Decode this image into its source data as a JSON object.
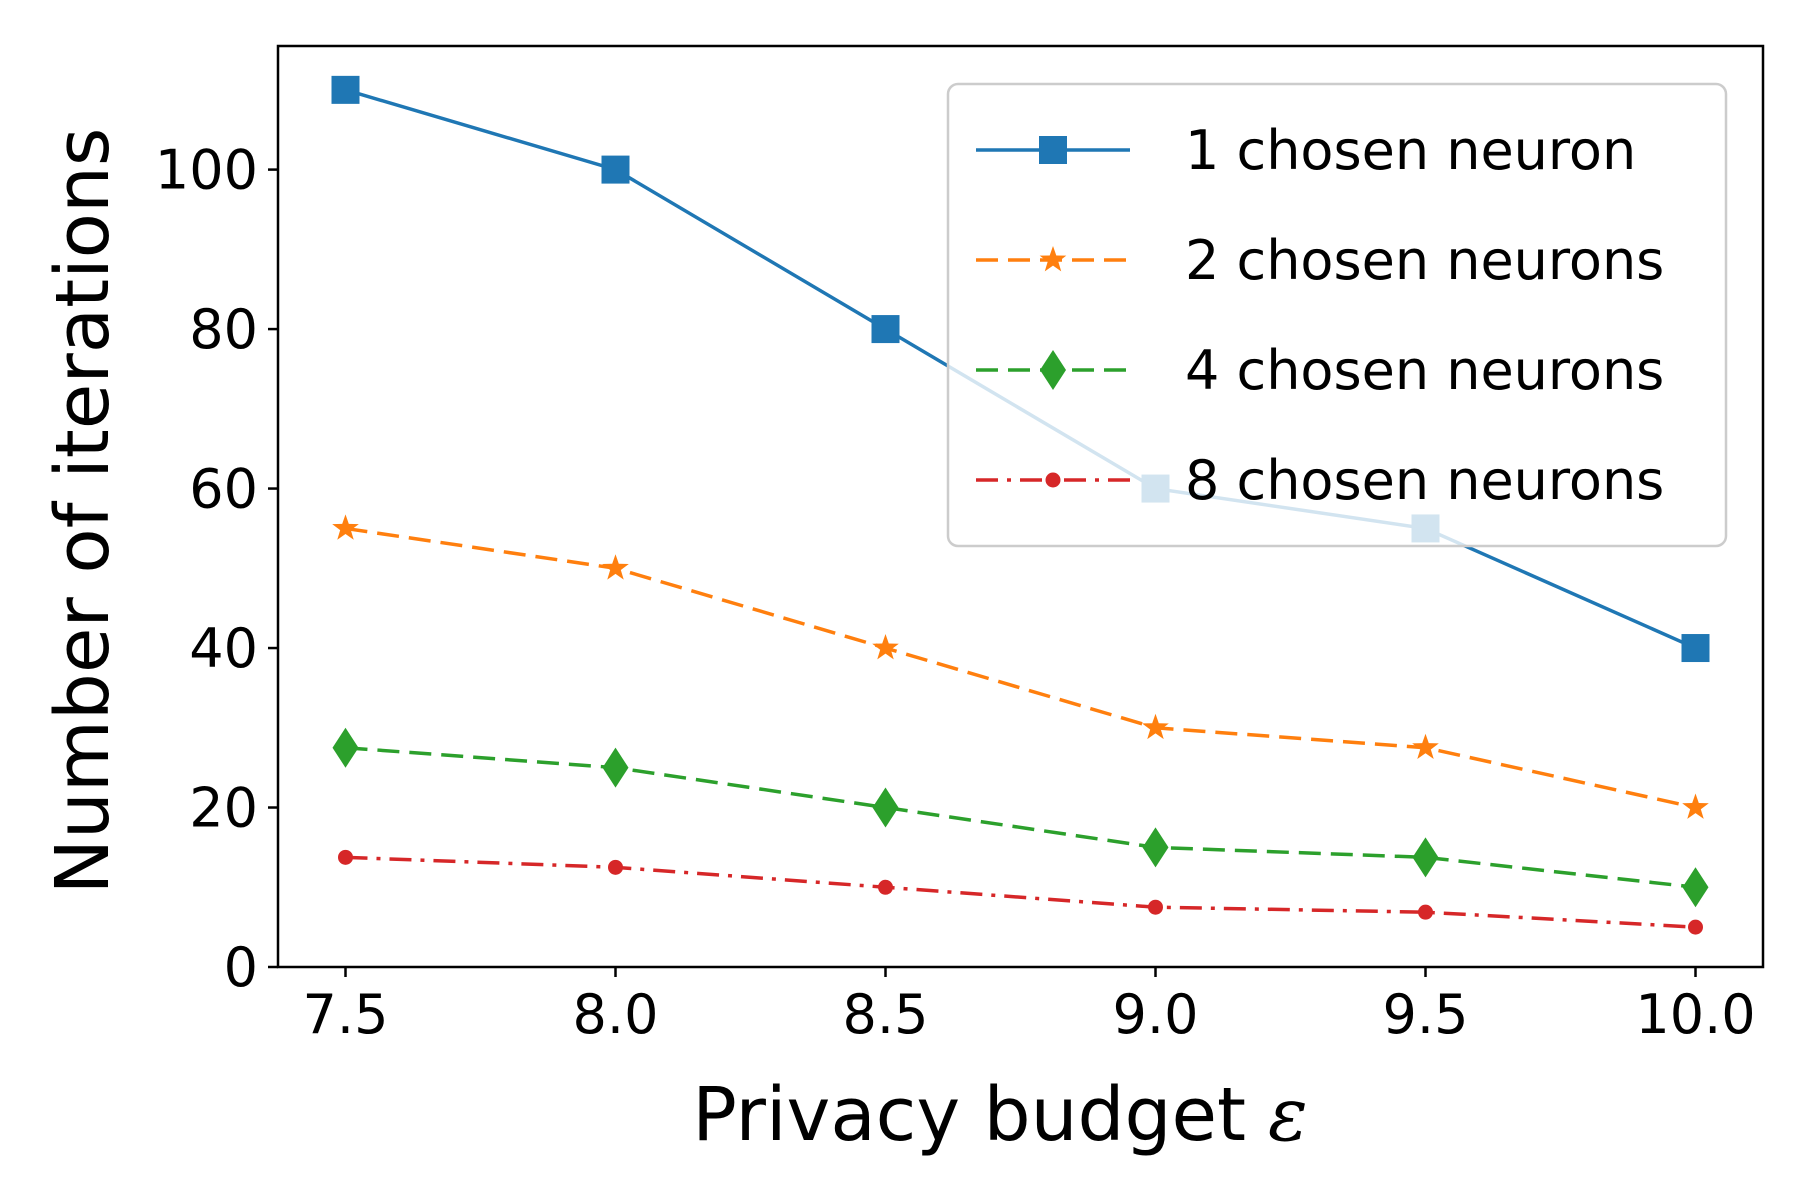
{
  "chart_data": {
    "type": "line",
    "title": "",
    "xlabel": "Privacy budget",
    "xlabel_symbol": "ε",
    "ylabel": "Number of iterations",
    "x": [
      7.5,
      8.0,
      8.5,
      9.0,
      9.5,
      10.0
    ],
    "x_tick_labels": [
      "7.5",
      "8.0",
      "8.5",
      "9.0",
      "9.5",
      "10.0"
    ],
    "y_ticks": [
      0,
      20,
      40,
      60,
      80,
      100
    ],
    "y_tick_labels": [
      "0",
      "20",
      "40",
      "60",
      "80",
      "100"
    ],
    "xlim": [
      7.375,
      10.125
    ],
    "ylim": [
      0,
      115.5
    ],
    "grid": false,
    "legend_position": "top-right",
    "series": [
      {
        "name": "1 chosen neuron",
        "values": [
          110,
          100,
          80,
          60,
          55,
          40
        ],
        "color": "#1f77b4",
        "linestyle": "solid",
        "marker": "square"
      },
      {
        "name": "2 chosen neurons",
        "values": [
          55,
          50,
          40,
          30,
          27.5,
          20
        ],
        "color": "#ff7f0e",
        "linestyle": "dashed",
        "marker": "star"
      },
      {
        "name": "4 chosen neurons",
        "values": [
          27.5,
          25,
          20,
          15,
          13.75,
          10
        ],
        "color": "#2ca02c",
        "linestyle": "dashed",
        "marker": "diamond"
      },
      {
        "name": "8 chosen neurons",
        "values": [
          13.75,
          12.5,
          10,
          7.5,
          6.875,
          5
        ],
        "color": "#d62728",
        "linestyle": "dashdot",
        "marker": "circle"
      }
    ]
  }
}
